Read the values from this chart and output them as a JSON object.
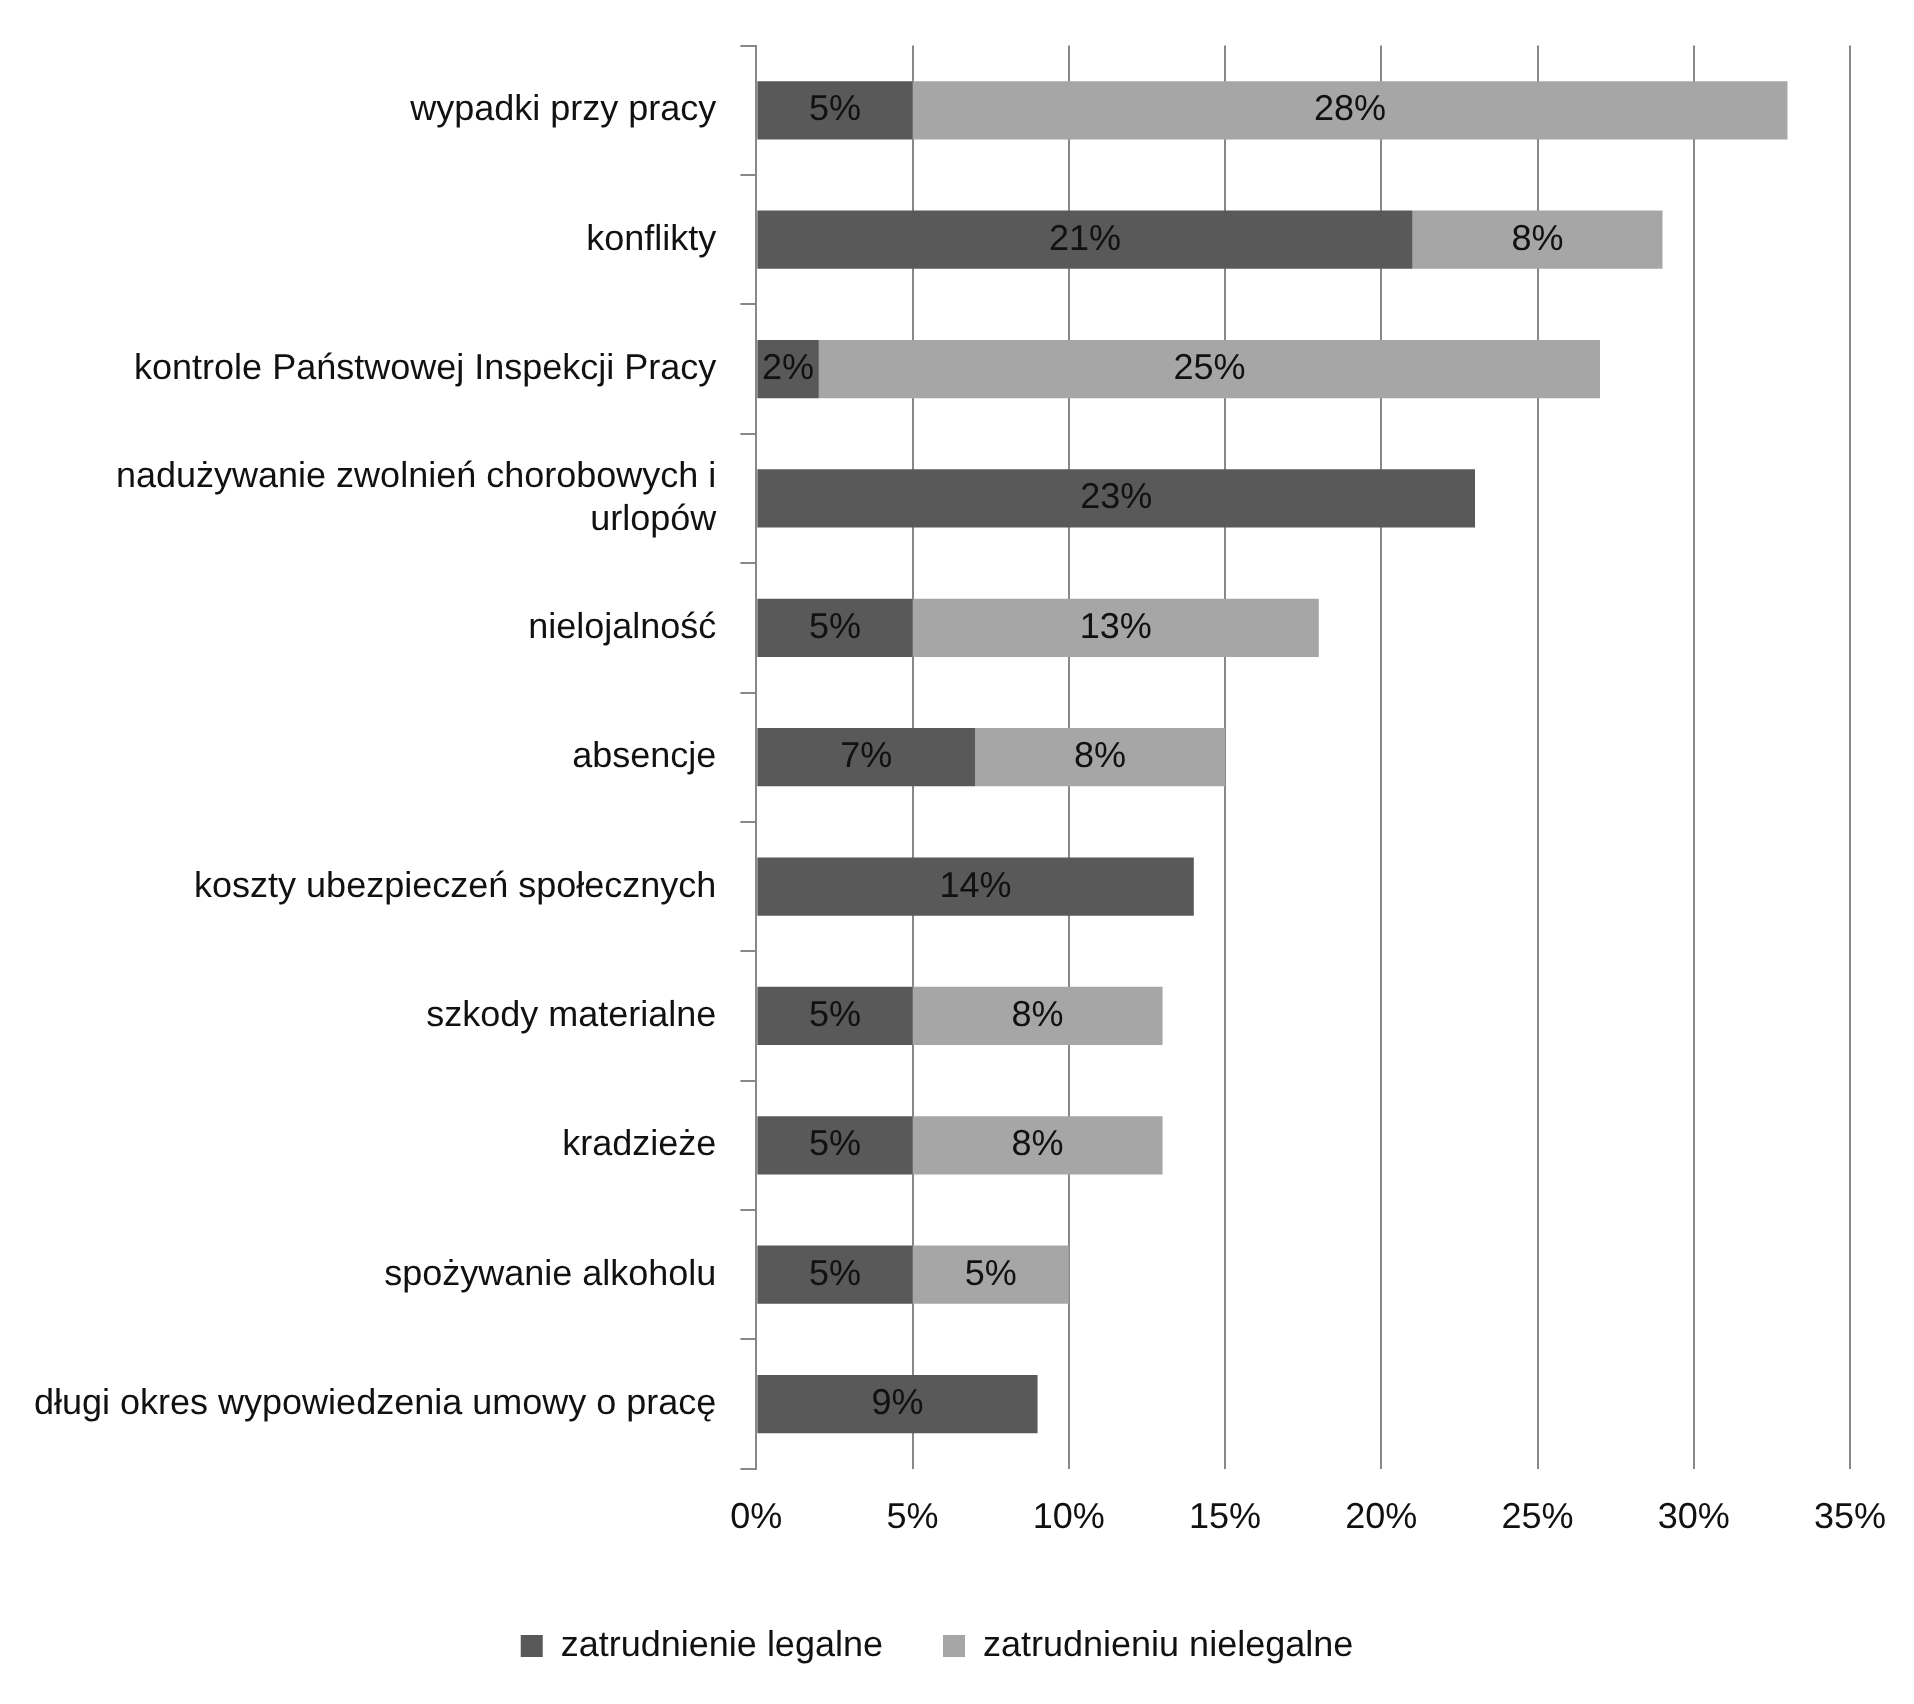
{
  "chart_data": {
    "type": "bar",
    "orientation": "horizontal",
    "stacked": true,
    "categories": [
      "wypadki przy pracy",
      "konflikty",
      "kontrole Państwowej Inspekcji Pracy",
      "nadużywanie zwolnień chorobowych i urlopów",
      "nielojalność",
      "absencje",
      "koszty ubezpieczeń społecznych",
      "szkody materialne",
      "kradzieże",
      "spożywanie alkoholu",
      "długi okres wypowiedzenia umowy o pracę"
    ],
    "series": [
      {
        "name": "zatrudnienie legalne",
        "color": "#595959",
        "values": [
          5,
          21,
          2,
          23,
          5,
          7,
          14,
          5,
          5,
          5,
          9
        ],
        "value_labels": [
          "5%",
          "21%",
          "2%",
          "23%",
          "5%",
          "7%",
          "14%",
          "5%",
          "5%",
          "5%",
          "9%"
        ]
      },
      {
        "name": "zatrudnieniu nielegalne",
        "color": "#a6a6a6",
        "values": [
          28,
          8,
          25,
          null,
          13,
          8,
          null,
          8,
          8,
          5,
          null
        ],
        "value_labels": [
          "28%",
          "8%",
          "25%",
          null,
          "13%",
          "8%",
          null,
          "8%",
          "8%",
          "5%",
          null
        ]
      }
    ],
    "xlim": [
      0,
      35
    ],
    "xticks": [
      {
        "value": 0,
        "label": "0%"
      },
      {
        "value": 5,
        "label": "5%"
      },
      {
        "value": 10,
        "label": "10%"
      },
      {
        "value": 15,
        "label": "15%"
      },
      {
        "value": 20,
        "label": "20%"
      },
      {
        "value": 25,
        "label": "25%"
      },
      {
        "value": 30,
        "label": "30%"
      },
      {
        "value": 35,
        "label": "35%"
      }
    ],
    "grid": "x",
    "legend": "bottom"
  }
}
